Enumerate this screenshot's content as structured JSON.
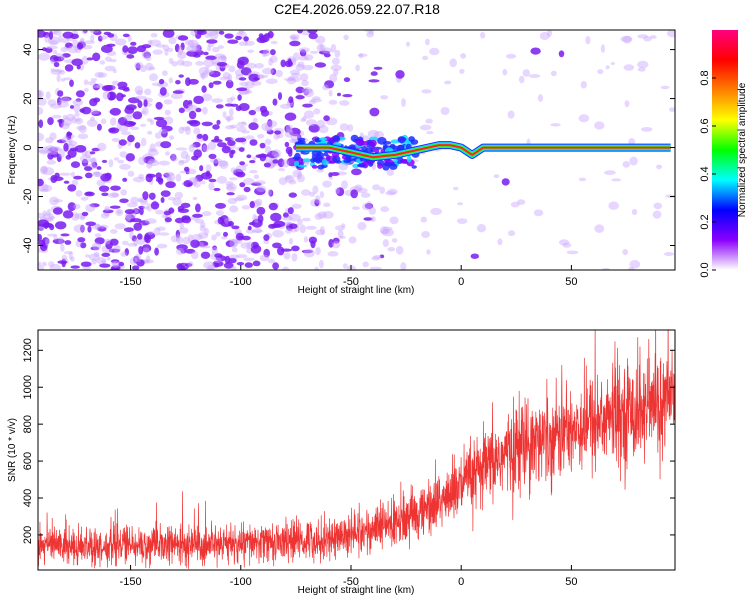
{
  "title": "C2E4.2026.059.22.07.R18",
  "chart_data": [
    {
      "type": "heatmap",
      "description_of_content": "spectrum vs height",
      "xlabel": "Height of straight line (km)",
      "ylabel": "Frequency (Hz)",
      "xlim": [
        -192,
        97
      ],
      "ylim": [
        -50,
        48
      ],
      "x_ticks": [
        -150,
        -100,
        -50,
        0,
        50
      ],
      "y_ticks": [
        -40,
        -20,
        0,
        20,
        40
      ],
      "x_tick_labels": [
        "-150",
        "-100",
        "-50",
        "0",
        "50"
      ],
      "y_tick_labels": [
        "-40",
        "-20",
        "0",
        "20",
        "40"
      ],
      "colorbar": {
        "label": "Normalized spectral amplitude",
        "range": [
          0,
          1
        ],
        "ticks": [
          0.0,
          0.2,
          0.4,
          0.6,
          0.8
        ],
        "tick_labels": [
          "0.0",
          "0.2",
          "0.4",
          "0.6",
          "0.8"
        ],
        "colormap": [
          "#ffffff",
          "#8a00ff",
          "#0000ff",
          "#00ffff",
          "#00ff00",
          "#ffff00",
          "#ff7f00",
          "#ff0000",
          "#ff0080"
        ]
      },
      "signal_track": [
        {
          "x": -75,
          "y": 0
        },
        {
          "x": -60,
          "y": 0
        },
        {
          "x": -50,
          "y": -2
        },
        {
          "x": -40,
          "y": -4
        },
        {
          "x": -30,
          "y": -3
        },
        {
          "x": -20,
          "y": -1
        },
        {
          "x": -10,
          "y": 1
        },
        {
          "x": -5,
          "y": 1
        },
        {
          "x": 0,
          "y": 0
        },
        {
          "x": 5,
          "y": -3
        },
        {
          "x": 10,
          "y": 0
        },
        {
          "x": 15,
          "y": 0
        },
        {
          "x": 20,
          "y": 0
        },
        {
          "x": 50,
          "y": 0
        },
        {
          "x": 95,
          "y": 0
        }
      ]
    },
    {
      "type": "line",
      "xlabel": "Height of straight line (km)",
      "ylabel": "SNR (10 * v/v)",
      "xlim": [
        -192,
        97
      ],
      "ylim": [
        10,
        1310
      ],
      "x_ticks": [
        -150,
        -100,
        -50,
        0,
        50
      ],
      "y_ticks": [
        200,
        400,
        600,
        800,
        1000,
        1200
      ],
      "x_tick_labels": [
        "-150",
        "-100",
        "-50",
        "0",
        "50"
      ],
      "y_tick_labels": [
        "200",
        "400",
        "600",
        "800",
        "1000",
        "1200"
      ],
      "color": "#ee3333",
      "trend": {
        "x": [
          -192,
          -150,
          -100,
          -60,
          -40,
          -25,
          -10,
          0,
          10,
          20,
          30,
          50,
          70,
          97
        ],
        "y": [
          150,
          140,
          150,
          180,
          230,
          280,
          380,
          460,
          550,
          640,
          700,
          780,
          850,
          920
        ]
      }
    }
  ]
}
